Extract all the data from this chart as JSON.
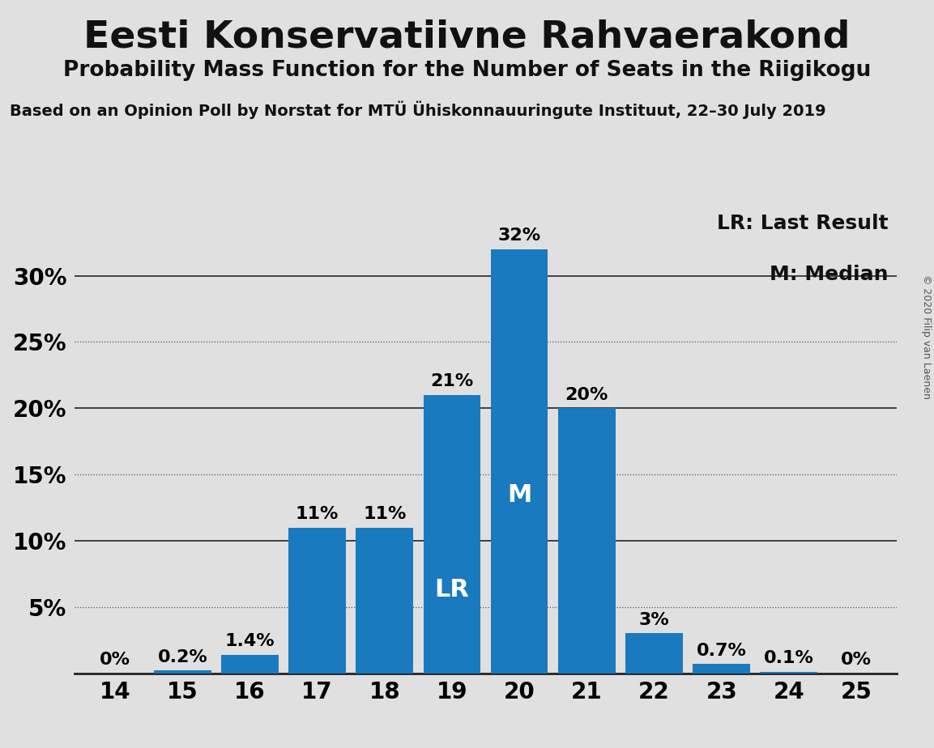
{
  "title": "Eesti Konservatiivne Rahvaerakond",
  "subtitle": "Probability Mass Function for the Number of Seats in the Riigikogu",
  "source": "Based on an Opinion Poll by Norstat for MTÜ Ühiskonnauuringute Instituut, 22–30 July 2019",
  "copyright": "© 2020 Filip van Laenen",
  "categories": [
    14,
    15,
    16,
    17,
    18,
    19,
    20,
    21,
    22,
    23,
    24,
    25
  ],
  "values": [
    0.0,
    0.2,
    1.4,
    11.0,
    11.0,
    21.0,
    32.0,
    20.0,
    3.0,
    0.7,
    0.1,
    0.0
  ],
  "labels": [
    "0%",
    "0.2%",
    "1.4%",
    "11%",
    "11%",
    "21%",
    "32%",
    "20%",
    "3%",
    "0.7%",
    "0.1%",
    "0%"
  ],
  "bar_color": "#1a7abf",
  "background_color": "#e0e0e0",
  "lr_bar": 19,
  "median_bar": 20,
  "legend_lr": "LR: Last Result",
  "legend_m": "M: Median",
  "ylim": [
    0,
    35
  ],
  "yticks": [
    0,
    5,
    10,
    15,
    20,
    25,
    30
  ],
  "ytick_labels": [
    "",
    "5%",
    "10%",
    "15%",
    "20%",
    "25%",
    "30%"
  ],
  "title_fontsize": 34,
  "subtitle_fontsize": 19,
  "source_fontsize": 14,
  "bar_label_fontsize": 16,
  "bar_inner_fontsize": 22,
  "axis_label_fontsize": 20,
  "legend_fontsize": 18,
  "copyright_fontsize": 9
}
